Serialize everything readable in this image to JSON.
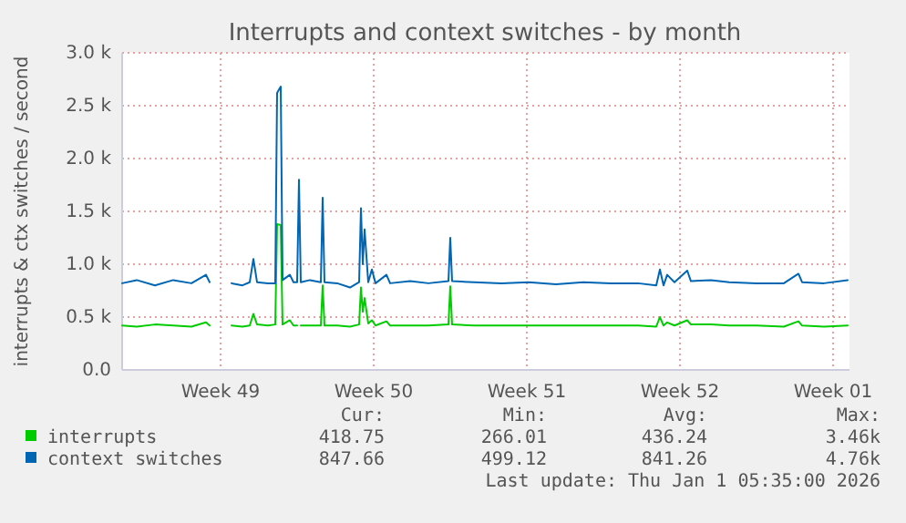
{
  "chart_data": {
    "type": "line",
    "title": "Interrupts and context switches - by month",
    "ylabel": "interrupts & ctx switches / second",
    "x": [
      "2025-11-30T00:00",
      "2025-11-30T16:00",
      "2025-12-01T12:00",
      "2025-12-02T08:00",
      "2025-12-03T04:00",
      "2025-12-03T20:00",
      "2025-12-04T00:00",
      "2025-12-04T12:00",
      "2025-12-05T00:00",
      "2025-12-05T12:00",
      "2025-12-05T20:00",
      "2025-12-06T00:00",
      "2025-12-06T04:00",
      "2025-12-06T16:00",
      "2025-12-07T00:00",
      "2025-12-07T02:00",
      "2025-12-07T06:00",
      "2025-12-07T08:00",
      "2025-12-07T16:00",
      "2025-12-07T20:00",
      "2025-12-08T00:00",
      "2025-12-08T02:00",
      "2025-12-08T04:00",
      "2025-12-08T14:00",
      "2025-12-09T02:00",
      "2025-12-09T04:00",
      "2025-12-09T06:00",
      "2025-12-09T20:00",
      "2025-12-10T10:00",
      "2025-12-10T20:00",
      "2025-12-10T22:00",
      "2025-12-11T00:00",
      "2025-12-11T02:00",
      "2025-12-11T06:00",
      "2025-12-11T10:00",
      "2025-12-11T14:00",
      "2025-12-12T02:00",
      "2025-12-12T06:00",
      "2025-12-13T04:00",
      "2025-12-14T00:00",
      "2025-12-14T22:00",
      "2025-12-15T00:00",
      "2025-12-15T02:00",
      "2025-12-16T02:00",
      "2025-12-17T08:00",
      "2025-12-18T14:00",
      "2025-12-19T20:00",
      "2025-12-21T02:00",
      "2025-12-22T08:00",
      "2025-12-23T14:00",
      "2025-12-24T10:00",
      "2025-12-24T14:00",
      "2025-12-24T18:00",
      "2025-12-24T22:00",
      "2025-12-25T06:00",
      "2025-12-25T20:00",
      "2025-12-26T00:00",
      "2025-12-26T22:00",
      "2025-12-27T18:00",
      "2025-12-29T00:00",
      "2025-12-30T06:00",
      "2025-12-30T22:00",
      "2025-12-31T02:00",
      "2026-01-01T02:00",
      "2026-01-02T04:00"
    ],
    "series": [
      {
        "name": "interrupts",
        "color": "#00cc00",
        "values": [
          420,
          410,
          430,
          420,
          410,
          450,
          420,
          null,
          420,
          410,
          420,
          530,
          430,
          420,
          430,
          1380,
          1370,
          430,
          470,
          420,
          420,
          null,
          420,
          420,
          420,
          800,
          420,
          420,
          410,
          430,
          780,
          550,
          680,
          440,
          470,
          420,
          460,
          420,
          420,
          420,
          430,
          790,
          430,
          420,
          420,
          420,
          420,
          420,
          420,
          420,
          410,
          500,
          420,
          450,
          420,
          470,
          430,
          430,
          420,
          420,
          410,
          460,
          420,
          410,
          420
        ]
      },
      {
        "name": "context switches",
        "color": "#0066b3",
        "values": [
          820,
          850,
          800,
          850,
          820,
          900,
          830,
          null,
          820,
          800,
          830,
          1050,
          830,
          820,
          820,
          2620,
          2680,
          850,
          900,
          830,
          830,
          1800,
          830,
          850,
          830,
          1630,
          830,
          820,
          780,
          830,
          1530,
          1000,
          1330,
          830,
          950,
          820,
          900,
          820,
          840,
          820,
          840,
          1250,
          840,
          830,
          820,
          830,
          810,
          830,
          820,
          820,
          800,
          950,
          800,
          900,
          830,
          940,
          840,
          850,
          830,
          820,
          820,
          910,
          830,
          820,
          850
        ]
      }
    ],
    "xlim": [
      "2025-11-30T00:00",
      "2026-01-02T06:00"
    ],
    "xticks": [
      {
        "value": "2025-12-04T12:00",
        "label": "Week 49"
      },
      {
        "value": "2025-12-11T12:00",
        "label": "Week 50"
      },
      {
        "value": "2025-12-18T12:00",
        "label": "Week 51"
      },
      {
        "value": "2025-12-25T12:00",
        "label": "Week 52"
      },
      {
        "value": "2026-01-01T12:00",
        "label": "Week 01"
      }
    ],
    "ylim": [
      0,
      3000
    ],
    "yticks": [
      {
        "value": 0,
        "label": "0.0"
      },
      {
        "value": 500,
        "label": "0.5 k"
      },
      {
        "value": 1000,
        "label": "1.0 k"
      },
      {
        "value": 1500,
        "label": "1.5 k"
      },
      {
        "value": 2000,
        "label": "2.0 k"
      },
      {
        "value": 2500,
        "label": "2.5 k"
      },
      {
        "value": 3000,
        "label": "3.0 k"
      }
    ],
    "grid": true,
    "legend": "bottom",
    "annotations": [
      "Cur:",
      "Min:",
      "Avg:",
      "Max:",
      "418.75",
      "266.01",
      "436.24",
      "3.46k",
      "847.66",
      "499.12",
      "841.26",
      "4.76k",
      "Last update: Thu Jan  1 05:35:00 2026"
    ]
  }
}
